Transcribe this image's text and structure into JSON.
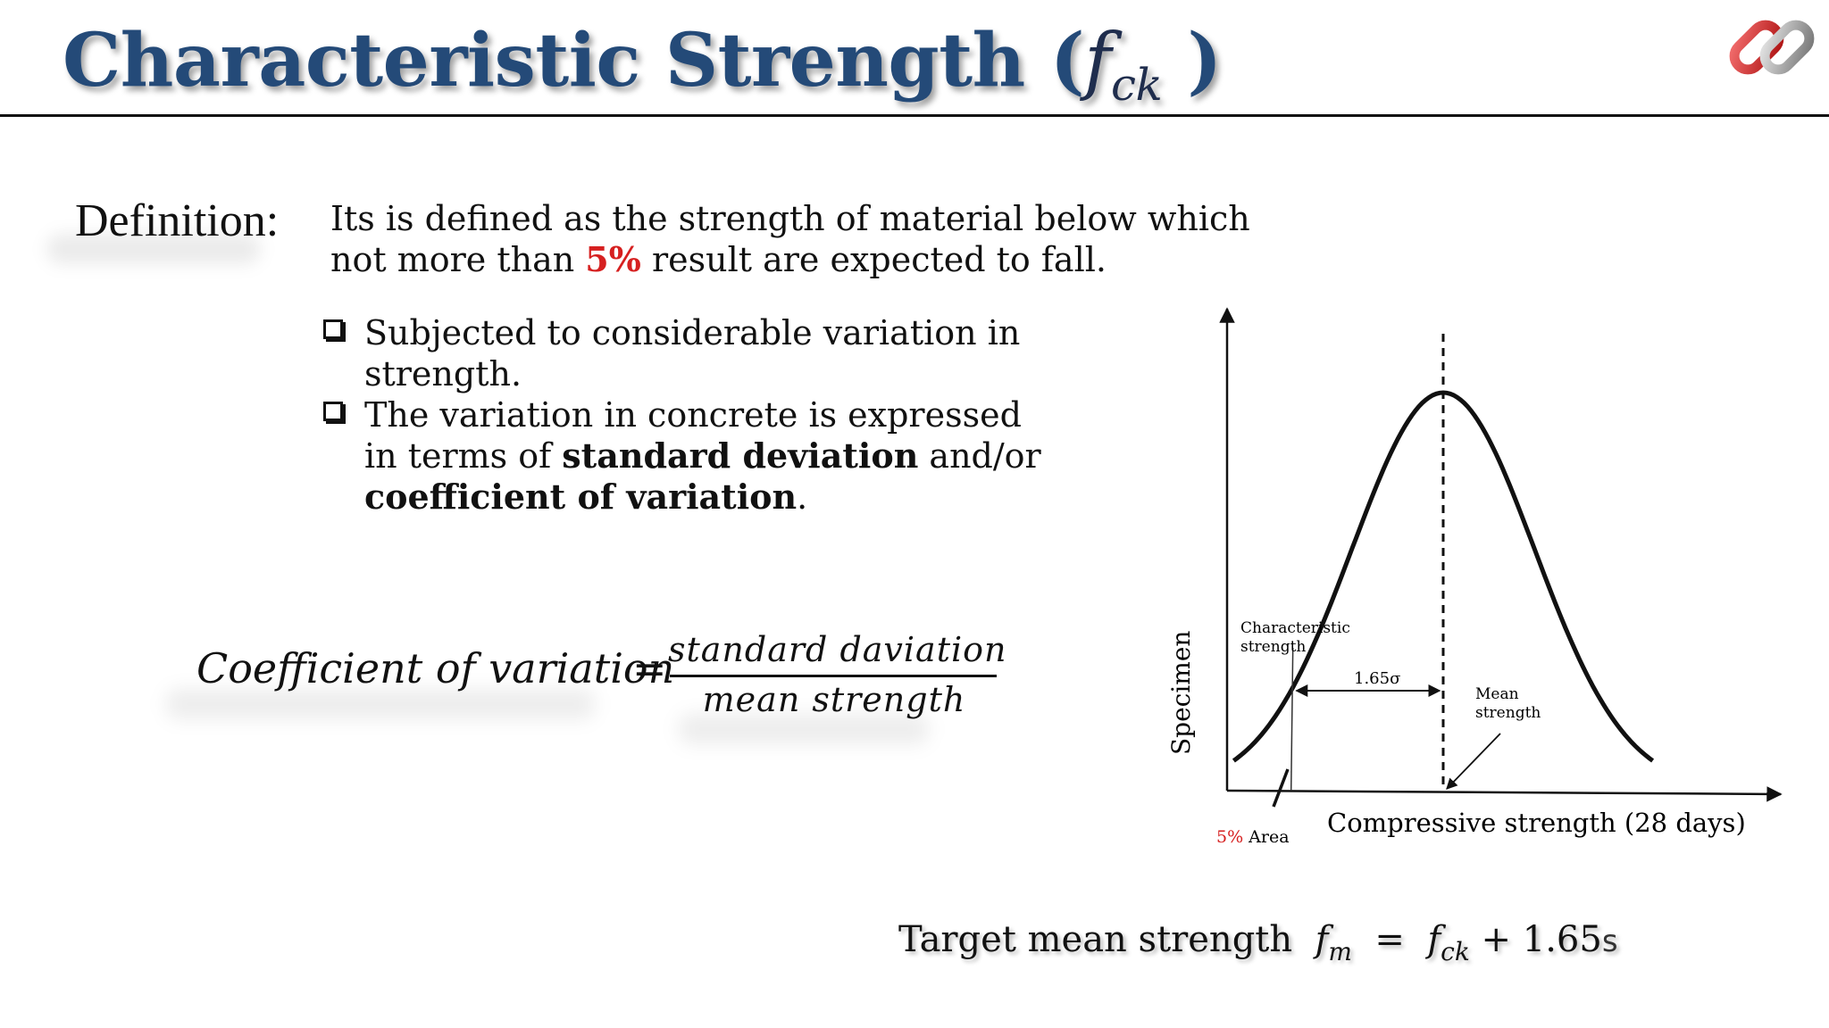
{
  "header": {
    "title": "Characteristic Strength",
    "title_open_paren": "(",
    "title_symbol": "f",
    "title_subscript": "ck",
    "title_close_paren": ")"
  },
  "definition": {
    "label": "Definition:",
    "text_part1": "Its is defined as the strength of material below which not more than ",
    "highlight": "5%",
    "text_part2": " result are expected to fall."
  },
  "bullets": [
    {
      "parts": [
        {
          "text": "Subjected to considerable variation in strength.",
          "bold": false
        }
      ]
    },
    {
      "parts": [
        {
          "text": "The variation in concrete is expressed in terms of ",
          "bold": false
        },
        {
          "text": "standard deviation",
          "bold": true
        },
        {
          "text": " and/or ",
          "bold": false
        },
        {
          "text": "coefficient of variation",
          "bold": true
        },
        {
          "text": ".",
          "bold": false
        }
      ]
    }
  ],
  "formula": {
    "lhs": "Coefficient of variation",
    "equals": "=",
    "numerator": "standard daviation",
    "denominator": "mean strength"
  },
  "chart_data": {
    "type": "line",
    "ylabel": "Specimen",
    "xlabel": "Compressive strength (28 days)",
    "mean_label_line1": "Mean",
    "mean_label_line2": "strength",
    "char_label_line1": "Characteristic",
    "char_label_line2": "strength",
    "sigma_label": "1.65σ",
    "area_percent": "5%",
    "area_label": "Area",
    "distribution": "normal",
    "mean": 0,
    "std": 1,
    "x_range": [
      -2.3,
      2.3
    ],
    "characteristic_x": -1.65
  },
  "target": {
    "label": "Target mean strength",
    "fm": "f",
    "fm_sub": "m",
    "eq": "=",
    "fck": "f",
    "fck_sub": "ck",
    "plus": "+ 1.65",
    "s": "s"
  },
  "colors": {
    "title": "#244a78",
    "highlight": "#d62020",
    "text": "#111111"
  },
  "logo": {
    "icon": "chain-link-icon"
  }
}
